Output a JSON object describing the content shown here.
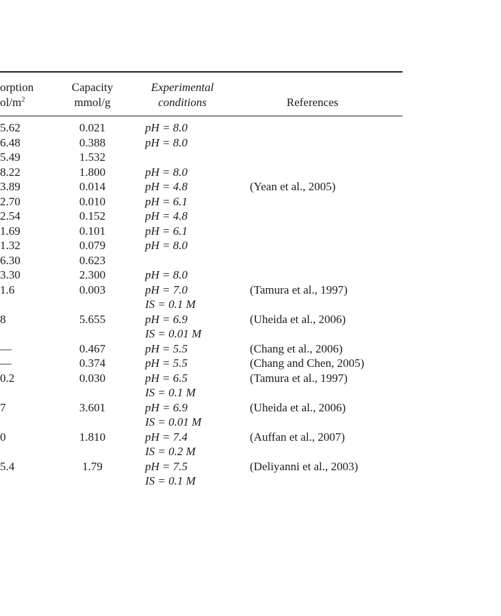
{
  "table": {
    "header": {
      "adsorption_line1": "orption",
      "adsorption_line2_base": "ol/m",
      "adsorption_line2_sup": "2",
      "capacity_line1": "Capacity",
      "capacity_line2": "mmol/g",
      "conditions_line1": "Experimental",
      "conditions_line2": "conditions",
      "references": "References"
    },
    "rows": [
      {
        "adsorption": "5.62",
        "capacity": "0.021",
        "conditions": [
          "pH = 8.0"
        ],
        "reference": ""
      },
      {
        "adsorption": "6.48",
        "capacity": "0.388",
        "conditions": [
          "pH = 8.0"
        ],
        "reference": ""
      },
      {
        "adsorption": "5.49",
        "capacity": "1.532",
        "conditions": [],
        "reference": ""
      },
      {
        "adsorption": "8.22",
        "capacity": "1.800",
        "conditions": [
          "pH = 8.0"
        ],
        "reference": ""
      },
      {
        "adsorption": "3.89",
        "capacity": "0.014",
        "conditions": [
          "pH = 4.8"
        ],
        "reference": "(Yean et al., 2005)"
      },
      {
        "adsorption": "2.70",
        "capacity": "0.010",
        "conditions": [
          "pH = 6.1"
        ],
        "reference": ""
      },
      {
        "adsorption": "2.54",
        "capacity": "0.152",
        "conditions": [
          "pH = 4.8"
        ],
        "reference": ""
      },
      {
        "adsorption": "1.69",
        "capacity": "0.101",
        "conditions": [
          "pH = 6.1"
        ],
        "reference": ""
      },
      {
        "adsorption": "1.32",
        "capacity": "0.079",
        "conditions": [
          "pH = 8.0"
        ],
        "reference": ""
      },
      {
        "adsorption": "6.30",
        "capacity": "0.623",
        "conditions": [],
        "reference": ""
      },
      {
        "adsorption": "3.30",
        "capacity": "2.300",
        "conditions": [
          "pH = 8.0"
        ],
        "reference": ""
      },
      {
        "adsorption": "1.6",
        "capacity": "0.003",
        "conditions": [
          "pH = 7.0",
          "IS = 0.1 M"
        ],
        "reference": "(Tamura et al., 1997)"
      },
      {
        "adsorption": "8",
        "capacity": "5.655",
        "conditions": [
          "pH = 6.9",
          "IS = 0.01 M"
        ],
        "reference": "(Uheida et al., 2006)"
      },
      {
        "adsorption": "—",
        "capacity": "0.467",
        "conditions": [
          "pH = 5.5"
        ],
        "reference": "(Chang et al., 2006)"
      },
      {
        "adsorption": "—",
        "capacity": "0.374",
        "conditions": [
          "pH = 5.5"
        ],
        "reference": "(Chang and Chen, 2005)"
      },
      {
        "adsorption": "0.2",
        "capacity": "0.030",
        "conditions": [
          "pH = 6.5",
          "IS = 0.1 M"
        ],
        "reference": "(Tamura et al., 1997)"
      },
      {
        "adsorption": "7",
        "capacity": "3.601",
        "conditions": [
          "pH = 6.9",
          "IS = 0.01 M"
        ],
        "reference": "(Uheida et al., 2006)"
      },
      {
        "adsorption": "0",
        "capacity": "1.810",
        "conditions": [
          "pH = 7.4",
          "IS = 0.2 M"
        ],
        "reference": "(Auffan et al., 2007)"
      },
      {
        "adsorption": "5.4",
        "capacity": "1.79",
        "conditions": [
          "pH = 7.5",
          "IS = 0.1 M"
        ],
        "reference": "(Deliyanni et al., 2003)"
      }
    ]
  }
}
